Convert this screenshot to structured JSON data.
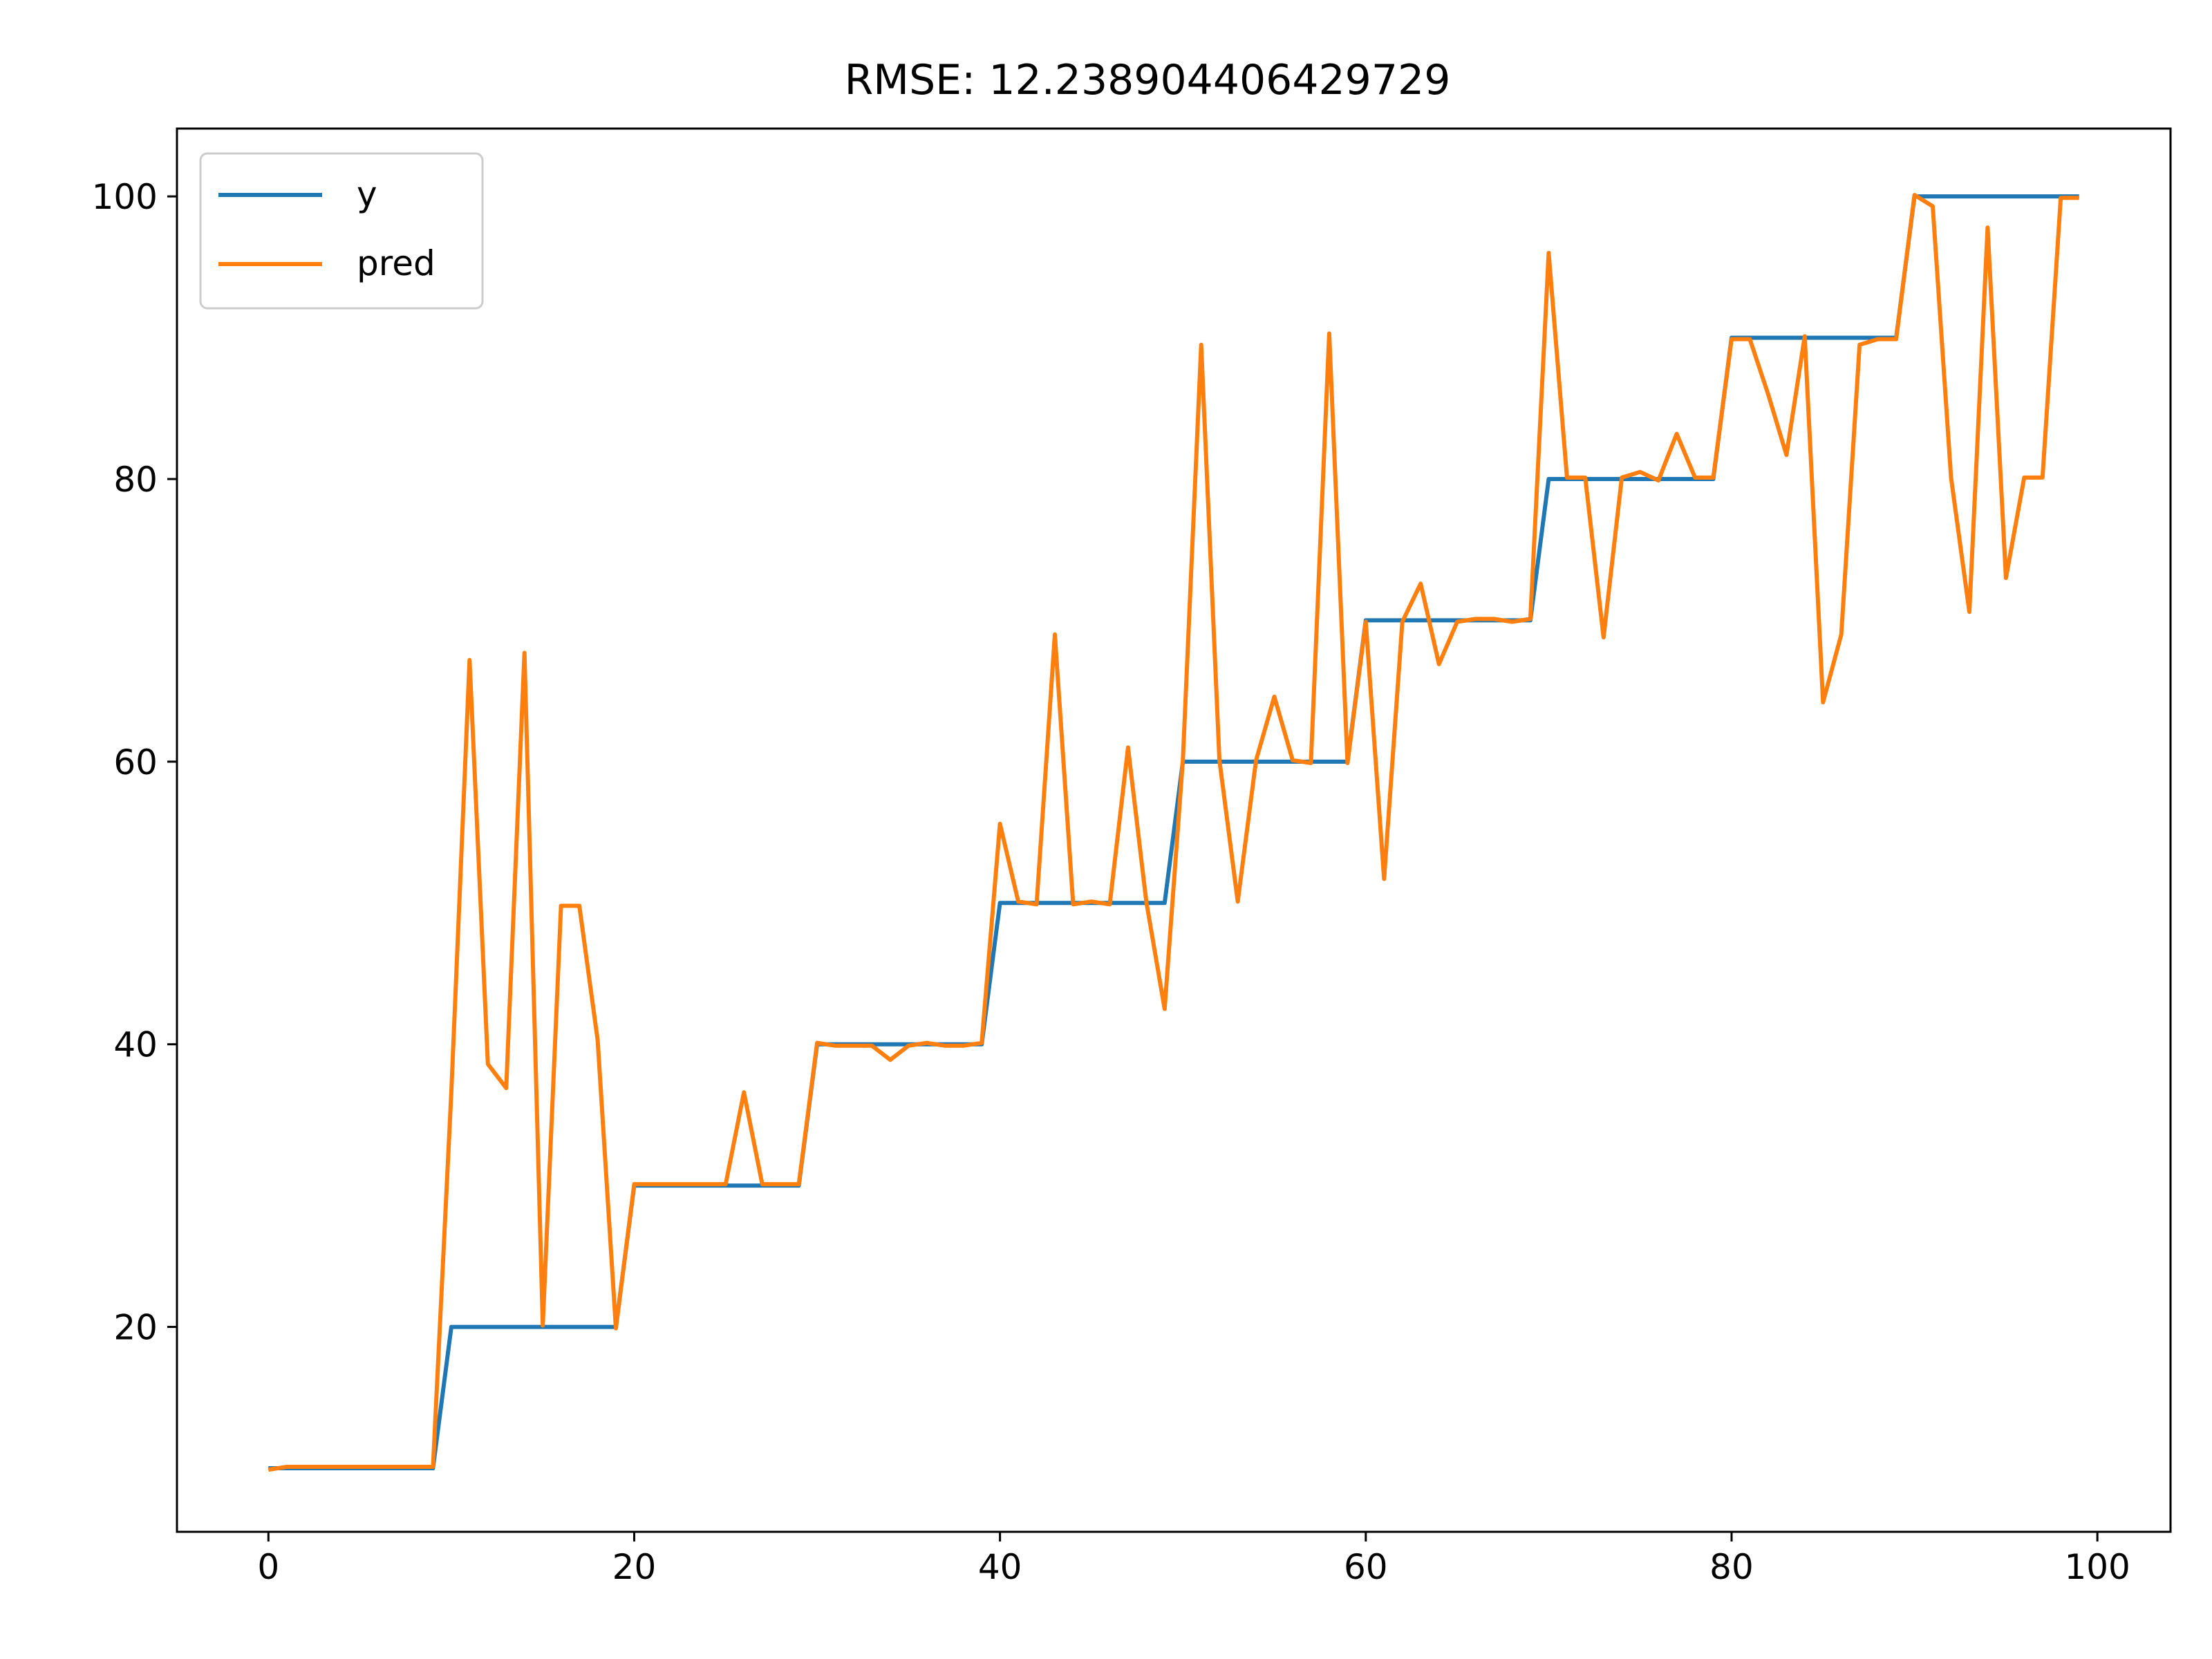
{
  "chart_data": {
    "type": "line",
    "title": "RMSE: 12.238904406429729",
    "xlabel": "",
    "ylabel": "",
    "xlim": [
      -5,
      104
    ],
    "ylim": [
      5.5,
      104.8
    ],
    "xticks": [
      0,
      20,
      40,
      60,
      80,
      100
    ],
    "yticks": [
      20,
      40,
      60,
      80,
      100
    ],
    "grid": false,
    "legend_position": "top-left",
    "x": [
      0,
      1,
      2,
      3,
      4,
      5,
      6,
      7,
      8,
      9,
      10,
      11,
      12,
      13,
      14,
      15,
      16,
      17,
      18,
      19,
      20,
      21,
      22,
      23,
      24,
      25,
      26,
      27,
      28,
      29,
      30,
      31,
      32,
      33,
      34,
      35,
      36,
      37,
      38,
      39,
      40,
      41,
      42,
      43,
      44,
      45,
      46,
      47,
      48,
      49,
      50,
      51,
      52,
      53,
      54,
      55,
      56,
      57,
      58,
      59,
      60,
      61,
      62,
      63,
      64,
      65,
      66,
      67,
      68,
      69,
      70,
      71,
      72,
      73,
      74,
      75,
      76,
      77,
      78,
      79,
      80,
      81,
      82,
      83,
      84,
      85,
      86,
      87,
      88,
      89,
      90,
      91,
      92,
      93,
      94,
      95,
      96,
      97,
      98,
      99
    ],
    "series": [
      {
        "name": "y",
        "color": "#1f77b4",
        "values": [
          10,
          10,
          10,
          10,
          10,
          10,
          10,
          10,
          10,
          10,
          20,
          20,
          20,
          20,
          20,
          20,
          20,
          20,
          20,
          20,
          30,
          30,
          30,
          30,
          30,
          30,
          30,
          30,
          30,
          30,
          40,
          40,
          40,
          40,
          40,
          40,
          40,
          40,
          40,
          40,
          50,
          50,
          50,
          50,
          50,
          50,
          50,
          50,
          50,
          50,
          60,
          60,
          60,
          60,
          60,
          60,
          60,
          60,
          60,
          60,
          70,
          70,
          70,
          70,
          70,
          70,
          70,
          70,
          70,
          70,
          80,
          80,
          80,
          80,
          80,
          80,
          80,
          80,
          80,
          80,
          90,
          90,
          90,
          90,
          90,
          90,
          90,
          90,
          90,
          90,
          100,
          100,
          100,
          100,
          100,
          100,
          100,
          100,
          100,
          100
        ]
      },
      {
        "name": "pred",
        "color": "#ff7f0e",
        "values": [
          9.9,
          10.1,
          10.1,
          10.1,
          10.1,
          10.1,
          10.1,
          10.1,
          10.1,
          10.1,
          36.6,
          67.2,
          38.6,
          36.9,
          67.7,
          20.1,
          49.8,
          49.8,
          40.3,
          19.9,
          30.1,
          30.1,
          30.1,
          30.1,
          30.1,
          30.1,
          36.6,
          30.1,
          30.1,
          30.1,
          40.1,
          39.9,
          39.9,
          39.9,
          38.9,
          39.9,
          40.1,
          39.9,
          39.9,
          40.1,
          55.6,
          50.1,
          49.9,
          69.0,
          49.9,
          50.1,
          49.9,
          61.0,
          50.1,
          42.5,
          60.1,
          89.5,
          60.1,
          50.1,
          60.1,
          64.6,
          60.1,
          59.9,
          90.3,
          59.9,
          69.9,
          51.7,
          69.9,
          72.6,
          66.9,
          69.9,
          70.1,
          70.1,
          69.9,
          70.1,
          96.0,
          80.1,
          80.1,
          68.8,
          80.1,
          80.5,
          79.9,
          83.2,
          80.1,
          80.1,
          89.9,
          89.9,
          86.0,
          81.7,
          90.1,
          64.2,
          69.0,
          89.5,
          89.9,
          89.9,
          100.1,
          99.3,
          80.1,
          70.6,
          97.8,
          73.0,
          80.1,
          80.1,
          99.9,
          99.9
        ]
      }
    ]
  }
}
